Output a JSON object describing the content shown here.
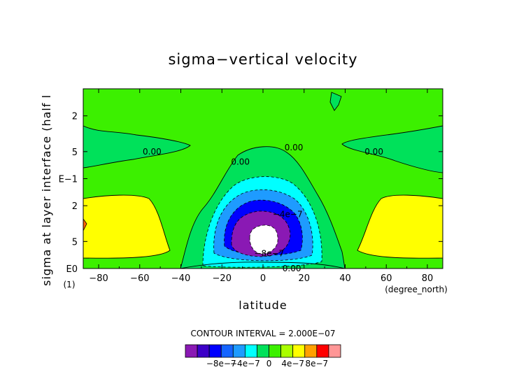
{
  "chart_data": {
    "type": "heatmap",
    "title": "sigma−vertical velocity",
    "xlabel": "latitude",
    "ylabel": "sigma at layer interface (half l",
    "x_unit_label": "(degree_north)",
    "y_corner_label": "(1)",
    "x_ticks": [
      "−80",
      "−60",
      "−40",
      "−20",
      "0",
      "20",
      "40",
      "60",
      "80"
    ],
    "x_tick_values": [
      -80,
      -60,
      -40,
      -20,
      0,
      20,
      40,
      60,
      80
    ],
    "xlim": [
      -87.5,
      87.5
    ],
    "y_ticks": [
      "2",
      "5",
      "E−1",
      "2",
      "5",
      "E0"
    ],
    "y_tick_values": [
      0.02,
      0.05,
      0.1,
      0.2,
      0.5,
      1.0
    ],
    "ylim": [
      0.01,
      1.0
    ],
    "y_scale": "log",
    "y_inverted": true,
    "contour_interval_text": "CONTOUR INTERVAL = 2.000E−07",
    "contour_labels": [
      {
        "text": "0.00",
        "x": -54,
        "y": 0.05
      },
      {
        "text": "0.00",
        "x": -11,
        "y": 0.065
      },
      {
        "text": "0.00",
        "x": 15,
        "y": 0.045
      },
      {
        "text": "0.00",
        "x": 54,
        "y": 0.05
      },
      {
        "text": "0.00",
        "x": 14,
        "y": 1.0
      },
      {
        "text": "−4e−7",
        "x": 12,
        "y": 0.25
      },
      {
        "text": "−8e−7",
        "x": 3,
        "y": 0.68
      }
    ],
    "levels": [
      -1e-06,
      -8e-07,
      -6e-07,
      -4e-07,
      -2e-07,
      0,
      2e-07,
      4e-07,
      6e-07,
      8e-07,
      1e-06
    ],
    "colorbar": {
      "colors": [
        "#8a19b4",
        "#3c00c8",
        "#0000ff",
        "#1464ff",
        "#1e9bff",
        "#00ffff",
        "#00e15a",
        "#3cf000",
        "#aaff00",
        "#ffff00",
        "#ffa000",
        "#ff0000",
        "#ff9696"
      ],
      "labels": [
        "−8e−7",
        "−4e−7",
        "0",
        "4e−7",
        "8e−7"
      ]
    },
    "regions": [
      {
        "name": "background",
        "value": 1e-07,
        "color": "#3cf000"
      },
      {
        "name": "west-midlatitude-subsidence",
        "value": 3e-07,
        "color": "#ffff00"
      },
      {
        "name": "east-midlatitude-subsidence",
        "value": 3e-07,
        "color": "#ffff00"
      },
      {
        "name": "southern-orange-spot",
        "value": 6e-07,
        "color": "#ff6400"
      },
      {
        "name": "west-upper-ascent",
        "value": -1e-07,
        "color": "#00e15a"
      },
      {
        "name": "east-upper-ascent",
        "value": -1e-07,
        "color": "#00e15a"
      },
      {
        "name": "top-ascent",
        "value": -1e-07,
        "color": "#00e15a"
      },
      {
        "name": "equatorial-ascent-0",
        "value": -1e-07,
        "color": "#00e15a"
      },
      {
        "name": "equatorial-ascent-2",
        "value": -3e-07,
        "color": "#00ffff"
      },
      {
        "name": "equatorial-ascent-4",
        "value": -5e-07,
        "color": "#1e9bff"
      },
      {
        "name": "equatorial-ascent-6",
        "value": -7e-07,
        "color": "#0000ff"
      },
      {
        "name": "equatorial-ascent-8",
        "value": -9e-07,
        "color": "#8a19b4"
      },
      {
        "name": "equatorial-core",
        "value": -1.1e-06,
        "color": "#ffffff"
      }
    ]
  }
}
